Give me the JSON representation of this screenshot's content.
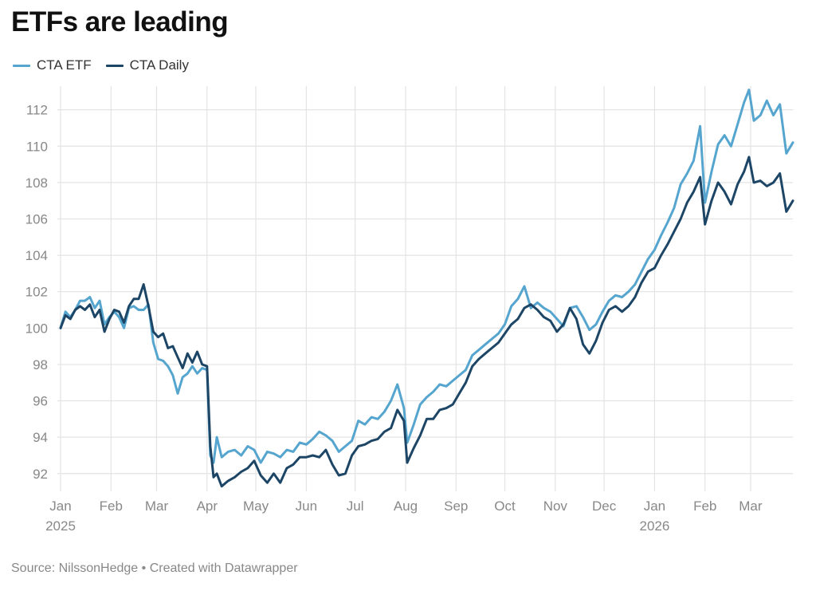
{
  "title": "ETFs are leading",
  "source": "Source: NilssonHedge • Created with Datawrapper",
  "colors": {
    "etf": "#55a5cf",
    "daily": "#1c4566",
    "grid": "#e3e3e3",
    "tick": "#888888"
  },
  "chart_data": {
    "type": "line",
    "title": "ETFs are leading",
    "x_range": [
      "2025-01-01",
      "2026-03-27"
    ],
    "ylim": [
      91.2,
      113.3
    ],
    "y_ticks": [
      92,
      94,
      96,
      98,
      100,
      102,
      104,
      106,
      108,
      110,
      112
    ],
    "x_ticks": [
      {
        "date": "2025-01-01",
        "label": "Jan",
        "year": "2025"
      },
      {
        "date": "2025-02-01",
        "label": "Feb",
        "year": ""
      },
      {
        "date": "2025-03-01",
        "label": "Mar",
        "year": ""
      },
      {
        "date": "2025-04-01",
        "label": "Apr",
        "year": ""
      },
      {
        "date": "2025-05-01",
        "label": "May",
        "year": ""
      },
      {
        "date": "2025-06-01",
        "label": "Jun",
        "year": ""
      },
      {
        "date": "2025-07-01",
        "label": "Jul",
        "year": ""
      },
      {
        "date": "2025-08-01",
        "label": "Aug",
        "year": ""
      },
      {
        "date": "2025-09-01",
        "label": "Sep",
        "year": ""
      },
      {
        "date": "2025-10-01",
        "label": "Oct",
        "year": ""
      },
      {
        "date": "2025-11-01",
        "label": "Nov",
        "year": ""
      },
      {
        "date": "2025-12-01",
        "label": "Dec",
        "year": ""
      },
      {
        "date": "2026-01-01",
        "label": "Jan",
        "year": "2026"
      },
      {
        "date": "2026-02-01",
        "label": "Feb",
        "year": ""
      },
      {
        "date": "2026-03-01",
        "label": "Mar",
        "year": ""
      }
    ],
    "grid": true,
    "legend_position": "top-left",
    "series": [
      {
        "name": "CTA ETF",
        "color": "#55a5cf",
        "points": [
          [
            "2025-01-01",
            100.0
          ],
          [
            "2025-01-04",
            100.9
          ],
          [
            "2025-01-07",
            100.6
          ],
          [
            "2025-01-10",
            101.0
          ],
          [
            "2025-01-13",
            101.5
          ],
          [
            "2025-01-16",
            101.5
          ],
          [
            "2025-01-19",
            101.7
          ],
          [
            "2025-01-22",
            101.1
          ],
          [
            "2025-01-25",
            101.5
          ],
          [
            "2025-01-28",
            100.2
          ],
          [
            "2025-01-31",
            100.6
          ],
          [
            "2025-02-03",
            100.9
          ],
          [
            "2025-02-06",
            100.6
          ],
          [
            "2025-02-09",
            100.0
          ],
          [
            "2025-02-12",
            101.1
          ],
          [
            "2025-02-15",
            101.2
          ],
          [
            "2025-02-18",
            101.0
          ],
          [
            "2025-02-21",
            101.0
          ],
          [
            "2025-02-24",
            101.3
          ],
          [
            "2025-02-27",
            99.2
          ],
          [
            "2025-03-02",
            98.3
          ],
          [
            "2025-03-05",
            98.2
          ],
          [
            "2025-03-08",
            97.9
          ],
          [
            "2025-03-11",
            97.4
          ],
          [
            "2025-03-14",
            96.4
          ],
          [
            "2025-03-17",
            97.3
          ],
          [
            "2025-03-20",
            97.5
          ],
          [
            "2025-03-23",
            97.9
          ],
          [
            "2025-03-26",
            97.5
          ],
          [
            "2025-03-29",
            97.8
          ],
          [
            "2025-04-01",
            97.7
          ],
          [
            "2025-04-03",
            93.0
          ],
          [
            "2025-04-05",
            92.6
          ],
          [
            "2025-04-07",
            94.0
          ],
          [
            "2025-04-10",
            92.9
          ],
          [
            "2025-04-14",
            93.2
          ],
          [
            "2025-04-18",
            93.3
          ],
          [
            "2025-04-22",
            93.0
          ],
          [
            "2025-04-26",
            93.5
          ],
          [
            "2025-04-30",
            93.3
          ],
          [
            "2025-05-04",
            92.6
          ],
          [
            "2025-05-08",
            93.2
          ],
          [
            "2025-05-12",
            93.1
          ],
          [
            "2025-05-16",
            92.9
          ],
          [
            "2025-05-20",
            93.3
          ],
          [
            "2025-05-24",
            93.2
          ],
          [
            "2025-05-28",
            93.7
          ],
          [
            "2025-06-01",
            93.6
          ],
          [
            "2025-06-05",
            93.9
          ],
          [
            "2025-06-09",
            94.3
          ],
          [
            "2025-06-13",
            94.1
          ],
          [
            "2025-06-17",
            93.8
          ],
          [
            "2025-06-21",
            93.2
          ],
          [
            "2025-06-25",
            93.5
          ],
          [
            "2025-06-29",
            93.8
          ],
          [
            "2025-07-03",
            94.9
          ],
          [
            "2025-07-07",
            94.7
          ],
          [
            "2025-07-11",
            95.1
          ],
          [
            "2025-07-15",
            95.0
          ],
          [
            "2025-07-19",
            95.4
          ],
          [
            "2025-07-23",
            96.0
          ],
          [
            "2025-07-27",
            96.9
          ],
          [
            "2025-07-31",
            95.6
          ],
          [
            "2025-08-02",
            93.7
          ],
          [
            "2025-08-06",
            94.7
          ],
          [
            "2025-08-10",
            95.8
          ],
          [
            "2025-08-14",
            96.2
          ],
          [
            "2025-08-18",
            96.5
          ],
          [
            "2025-08-22",
            96.9
          ],
          [
            "2025-08-26",
            96.8
          ],
          [
            "2025-08-30",
            97.1
          ],
          [
            "2025-09-03",
            97.4
          ],
          [
            "2025-09-07",
            97.7
          ],
          [
            "2025-09-11",
            98.5
          ],
          [
            "2025-09-15",
            98.8
          ],
          [
            "2025-09-19",
            99.1
          ],
          [
            "2025-09-23",
            99.4
          ],
          [
            "2025-09-27",
            99.7
          ],
          [
            "2025-10-01",
            100.2
          ],
          [
            "2025-10-05",
            101.2
          ],
          [
            "2025-10-09",
            101.6
          ],
          [
            "2025-10-13",
            102.3
          ],
          [
            "2025-10-17",
            101.1
          ],
          [
            "2025-10-21",
            101.4
          ],
          [
            "2025-10-25",
            101.1
          ],
          [
            "2025-10-29",
            100.9
          ],
          [
            "2025-11-02",
            100.5
          ],
          [
            "2025-11-06",
            100.1
          ],
          [
            "2025-11-10",
            101.1
          ],
          [
            "2025-11-14",
            101.2
          ],
          [
            "2025-11-18",
            100.6
          ],
          [
            "2025-11-22",
            99.9
          ],
          [
            "2025-11-26",
            100.2
          ],
          [
            "2025-11-30",
            100.9
          ],
          [
            "2025-12-04",
            101.5
          ],
          [
            "2025-12-08",
            101.8
          ],
          [
            "2025-12-12",
            101.7
          ],
          [
            "2025-12-16",
            102.0
          ],
          [
            "2025-12-20",
            102.4
          ],
          [
            "2025-12-24",
            103.1
          ],
          [
            "2025-12-28",
            103.8
          ],
          [
            "2026-01-01",
            104.3
          ],
          [
            "2026-01-05",
            105.1
          ],
          [
            "2026-01-09",
            105.8
          ],
          [
            "2026-01-13",
            106.6
          ],
          [
            "2026-01-17",
            107.9
          ],
          [
            "2026-01-21",
            108.5
          ],
          [
            "2026-01-25",
            109.2
          ],
          [
            "2026-01-29",
            111.1
          ],
          [
            "2026-02-01",
            106.9
          ],
          [
            "2026-02-05",
            108.6
          ],
          [
            "2026-02-09",
            110.1
          ],
          [
            "2026-02-13",
            110.6
          ],
          [
            "2026-02-17",
            110.0
          ],
          [
            "2026-02-21",
            111.2
          ],
          [
            "2026-02-25",
            112.4
          ],
          [
            "2026-02-28",
            113.1
          ],
          [
            "2026-03-03",
            111.4
          ],
          [
            "2026-03-07",
            111.7
          ],
          [
            "2026-03-11",
            112.5
          ],
          [
            "2026-03-15",
            111.7
          ],
          [
            "2026-03-19",
            112.3
          ],
          [
            "2026-03-23",
            109.6
          ],
          [
            "2026-03-27",
            110.2
          ]
        ]
      },
      {
        "name": "CTA Daily",
        "color": "#1c4566",
        "points": [
          [
            "2025-01-01",
            100.0
          ],
          [
            "2025-01-04",
            100.7
          ],
          [
            "2025-01-07",
            100.5
          ],
          [
            "2025-01-10",
            101.0
          ],
          [
            "2025-01-13",
            101.2
          ],
          [
            "2025-01-16",
            101.0
          ],
          [
            "2025-01-19",
            101.3
          ],
          [
            "2025-01-22",
            100.6
          ],
          [
            "2025-01-25",
            101.0
          ],
          [
            "2025-01-28",
            99.8
          ],
          [
            "2025-01-31",
            100.5
          ],
          [
            "2025-02-03",
            101.0
          ],
          [
            "2025-02-06",
            100.9
          ],
          [
            "2025-02-09",
            100.3
          ],
          [
            "2025-02-12",
            101.2
          ],
          [
            "2025-02-15",
            101.6
          ],
          [
            "2025-02-18",
            101.6
          ],
          [
            "2025-02-21",
            102.4
          ],
          [
            "2025-02-24",
            101.2
          ],
          [
            "2025-02-27",
            99.8
          ],
          [
            "2025-03-02",
            99.5
          ],
          [
            "2025-03-05",
            99.7
          ],
          [
            "2025-03-08",
            98.9
          ],
          [
            "2025-03-11",
            99.0
          ],
          [
            "2025-03-14",
            98.4
          ],
          [
            "2025-03-17",
            97.8
          ],
          [
            "2025-03-20",
            98.6
          ],
          [
            "2025-03-23",
            98.1
          ],
          [
            "2025-03-26",
            98.7
          ],
          [
            "2025-03-29",
            98.0
          ],
          [
            "2025-04-01",
            97.9
          ],
          [
            "2025-04-03",
            93.5
          ],
          [
            "2025-04-05",
            91.8
          ],
          [
            "2025-04-07",
            92.0
          ],
          [
            "2025-04-10",
            91.3
          ],
          [
            "2025-04-14",
            91.6
          ],
          [
            "2025-04-18",
            91.8
          ],
          [
            "2025-04-22",
            92.1
          ],
          [
            "2025-04-26",
            92.3
          ],
          [
            "2025-04-30",
            92.7
          ],
          [
            "2025-05-04",
            91.9
          ],
          [
            "2025-05-08",
            91.5
          ],
          [
            "2025-05-12",
            92.0
          ],
          [
            "2025-05-16",
            91.5
          ],
          [
            "2025-05-20",
            92.3
          ],
          [
            "2025-05-24",
            92.5
          ],
          [
            "2025-05-28",
            92.9
          ],
          [
            "2025-06-01",
            92.9
          ],
          [
            "2025-06-05",
            93.0
          ],
          [
            "2025-06-09",
            92.9
          ],
          [
            "2025-06-13",
            93.3
          ],
          [
            "2025-06-17",
            92.5
          ],
          [
            "2025-06-21",
            91.9
          ],
          [
            "2025-06-25",
            92.0
          ],
          [
            "2025-06-29",
            93.0
          ],
          [
            "2025-07-03",
            93.5
          ],
          [
            "2025-07-07",
            93.6
          ],
          [
            "2025-07-11",
            93.8
          ],
          [
            "2025-07-15",
            93.9
          ],
          [
            "2025-07-19",
            94.3
          ],
          [
            "2025-07-23",
            94.5
          ],
          [
            "2025-07-27",
            95.5
          ],
          [
            "2025-07-31",
            94.9
          ],
          [
            "2025-08-02",
            92.6
          ],
          [
            "2025-08-06",
            93.4
          ],
          [
            "2025-08-10",
            94.1
          ],
          [
            "2025-08-14",
            95.0
          ],
          [
            "2025-08-18",
            95.0
          ],
          [
            "2025-08-22",
            95.5
          ],
          [
            "2025-08-26",
            95.6
          ],
          [
            "2025-08-30",
            95.8
          ],
          [
            "2025-09-03",
            96.4
          ],
          [
            "2025-09-07",
            97.0
          ],
          [
            "2025-09-11",
            97.9
          ],
          [
            "2025-09-15",
            98.3
          ],
          [
            "2025-09-19",
            98.6
          ],
          [
            "2025-09-23",
            98.9
          ],
          [
            "2025-09-27",
            99.2
          ],
          [
            "2025-10-01",
            99.7
          ],
          [
            "2025-10-05",
            100.2
          ],
          [
            "2025-10-09",
            100.5
          ],
          [
            "2025-10-13",
            101.1
          ],
          [
            "2025-10-17",
            101.3
          ],
          [
            "2025-10-21",
            101.0
          ],
          [
            "2025-10-25",
            100.6
          ],
          [
            "2025-10-29",
            100.4
          ],
          [
            "2025-11-02",
            99.8
          ],
          [
            "2025-11-06",
            100.2
          ],
          [
            "2025-11-10",
            101.1
          ],
          [
            "2025-11-14",
            100.5
          ],
          [
            "2025-11-18",
            99.1
          ],
          [
            "2025-11-22",
            98.6
          ],
          [
            "2025-11-26",
            99.3
          ],
          [
            "2025-11-30",
            100.3
          ],
          [
            "2025-12-04",
            101.0
          ],
          [
            "2025-12-08",
            101.2
          ],
          [
            "2025-12-12",
            100.9
          ],
          [
            "2025-12-16",
            101.2
          ],
          [
            "2025-12-20",
            101.7
          ],
          [
            "2025-12-24",
            102.5
          ],
          [
            "2025-12-28",
            103.1
          ],
          [
            "2026-01-01",
            103.3
          ],
          [
            "2026-01-05",
            104.0
          ],
          [
            "2026-01-09",
            104.6
          ],
          [
            "2026-01-13",
            105.3
          ],
          [
            "2026-01-17",
            106.0
          ],
          [
            "2026-01-21",
            106.9
          ],
          [
            "2026-01-25",
            107.5
          ],
          [
            "2026-01-29",
            108.3
          ],
          [
            "2026-02-01",
            105.7
          ],
          [
            "2026-02-05",
            107.0
          ],
          [
            "2026-02-09",
            108.0
          ],
          [
            "2026-02-13",
            107.5
          ],
          [
            "2026-02-17",
            106.8
          ],
          [
            "2026-02-21",
            107.9
          ],
          [
            "2026-02-25",
            108.6
          ],
          [
            "2026-02-28",
            109.4
          ],
          [
            "2026-03-03",
            108.0
          ],
          [
            "2026-03-07",
            108.1
          ],
          [
            "2026-03-11",
            107.8
          ],
          [
            "2026-03-15",
            108.0
          ],
          [
            "2026-03-19",
            108.5
          ],
          [
            "2026-03-23",
            106.4
          ],
          [
            "2026-03-27",
            107.0
          ]
        ]
      }
    ]
  }
}
